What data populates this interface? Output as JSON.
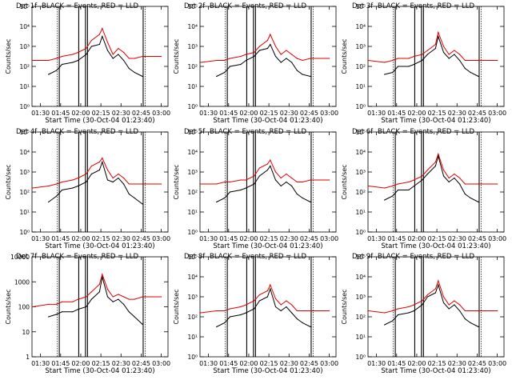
{
  "chart_data": {
    "type": "line",
    "layout": "3x3 grid of panels",
    "time_window": {
      "start": "01:23:40",
      "end": "03:05:00"
    },
    "x_ticks": [
      "01:30",
      "01:45",
      "02:00",
      "02:15",
      "02:30",
      "02:45",
      "03:00"
    ],
    "x_ticks_minutes_after_0100": [
      30,
      45,
      60,
      75,
      90,
      105,
      120
    ],
    "xlabel": "Start Time (30-Oct-04 01:23:40)",
    "ylabel": "Counts/sec",
    "yscale": "log",
    "legend_text": "BLACK = Events, RED = LLD",
    "series_colors": {
      "events": "#000000",
      "lld": "#e00000"
    },
    "vertical_markers_minutes": [
      42.5,
      44.0,
      58.5,
      63.5,
      65.0,
      106.5,
      108.0
    ],
    "series_points_minutes": [
      24,
      36,
      42,
      46,
      54,
      58,
      64,
      68,
      74,
      76,
      80,
      84,
      88,
      92,
      96,
      100,
      106,
      120
    ],
    "panels": [
      {
        "title": "Det 1f",
        "ylim_exp": [
          0,
          5
        ],
        "y_tick_labels": [
          "10⁰",
          "10¹",
          "10²",
          "10³",
          "10⁴",
          "10⁵"
        ],
        "events": [
          null,
          1.6,
          1.8,
          2.1,
          2.2,
          2.3,
          2.6,
          3.0,
          3.1,
          3.5,
          2.8,
          2.4,
          2.6,
          2.3,
          1.9,
          1.7,
          1.5,
          null
        ],
        "lld": [
          2.3,
          2.3,
          2.4,
          2.5,
          2.6,
          2.7,
          2.9,
          3.3,
          3.6,
          3.9,
          3.2,
          2.6,
          2.9,
          2.7,
          2.4,
          2.4,
          2.5,
          2.5
        ]
      },
      {
        "title": "Det 2f",
        "ylim_exp": [
          0,
          5
        ],
        "y_tick_labels": [
          "10⁰",
          "10¹",
          "10²",
          "10³",
          "10⁴",
          "10⁵"
        ],
        "events": [
          null,
          1.5,
          1.7,
          2.0,
          2.1,
          2.3,
          2.5,
          2.8,
          2.9,
          3.1,
          2.5,
          2.2,
          2.4,
          2.2,
          1.8,
          1.6,
          1.5,
          null
        ],
        "lld": [
          2.2,
          2.3,
          2.3,
          2.4,
          2.5,
          2.6,
          2.7,
          3.0,
          3.3,
          3.6,
          3.0,
          2.6,
          2.8,
          2.6,
          2.4,
          2.3,
          2.4,
          2.4
        ]
      },
      {
        "title": "Det 3f",
        "ylim_exp": [
          0,
          5
        ],
        "y_tick_labels": [
          "10⁰",
          "10¹",
          "10²",
          "10³",
          "10⁴",
          "10⁵"
        ],
        "events": [
          null,
          1.6,
          1.7,
          2.0,
          2.0,
          2.1,
          2.3,
          2.6,
          2.9,
          3.5,
          2.7,
          2.4,
          2.6,
          2.3,
          1.9,
          1.7,
          1.5,
          null
        ],
        "lld": [
          2.3,
          2.2,
          2.3,
          2.4,
          2.4,
          2.5,
          2.6,
          2.8,
          3.1,
          3.7,
          3.0,
          2.6,
          2.8,
          2.6,
          2.3,
          2.3,
          2.3,
          2.3
        ]
      },
      {
        "title": "Det 4f",
        "ylim_exp": [
          0,
          5
        ],
        "y_tick_labels": [
          "10⁰",
          "10¹",
          "10²",
          "10³",
          "10⁴",
          "10⁵"
        ],
        "events": [
          null,
          1.5,
          1.8,
          2.1,
          2.2,
          2.3,
          2.5,
          2.9,
          3.1,
          3.5,
          2.6,
          2.5,
          2.7,
          2.4,
          1.9,
          1.7,
          1.4,
          null
        ],
        "lld": [
          2.2,
          2.3,
          2.4,
          2.5,
          2.6,
          2.7,
          2.9,
          3.3,
          3.5,
          3.7,
          3.1,
          2.7,
          2.9,
          2.7,
          2.4,
          2.4,
          2.4,
          2.4
        ]
      },
      {
        "title": "Det 5f",
        "ylim_exp": [
          0,
          5
        ],
        "y_tick_labels": [
          "10⁰",
          "10¹",
          "10²",
          "10³",
          "10⁴",
          "10⁵"
        ],
        "events": [
          null,
          1.5,
          1.7,
          2.0,
          2.1,
          2.2,
          2.4,
          2.8,
          3.1,
          3.3,
          2.6,
          2.3,
          2.5,
          2.3,
          1.9,
          1.7,
          1.5,
          null
        ],
        "lld": [
          2.4,
          2.4,
          2.5,
          2.5,
          2.6,
          2.6,
          2.8,
          3.2,
          3.4,
          3.6,
          3.0,
          2.7,
          2.9,
          2.7,
          2.5,
          2.5,
          2.6,
          2.6
        ]
      },
      {
        "title": "Det 6f",
        "ylim_exp": [
          0,
          5
        ],
        "y_tick_labels": [
          "10⁰",
          "10¹",
          "10²",
          "10³",
          "10⁴",
          "10⁵"
        ],
        "events": [
          null,
          1.6,
          1.8,
          2.1,
          2.1,
          2.3,
          2.6,
          2.9,
          3.3,
          3.8,
          2.8,
          2.5,
          2.7,
          2.4,
          1.9,
          1.7,
          1.5,
          null
        ],
        "lld": [
          2.3,
          2.2,
          2.3,
          2.4,
          2.5,
          2.6,
          2.8,
          3.1,
          3.5,
          3.9,
          3.1,
          2.7,
          2.9,
          2.7,
          2.4,
          2.4,
          2.4,
          2.4
        ]
      },
      {
        "title": "Det 7f",
        "ylim_exp": [
          0,
          4
        ],
        "y_tick_labels": [
          "1",
          "10",
          "100",
          "1000",
          "10000"
        ],
        "events": [
          null,
          1.6,
          1.7,
          1.8,
          1.8,
          1.9,
          2.0,
          2.3,
          2.6,
          3.2,
          2.4,
          2.2,
          2.3,
          2.1,
          1.8,
          1.6,
          1.3,
          null
        ],
        "lld": [
          2.0,
          2.1,
          2.1,
          2.2,
          2.2,
          2.3,
          2.4,
          2.6,
          2.9,
          3.3,
          2.7,
          2.4,
          2.5,
          2.4,
          2.3,
          2.3,
          2.4,
          2.4
        ]
      },
      {
        "title": "Det 8f",
        "ylim_exp": [
          0,
          5
        ],
        "y_tick_labels": [
          "10⁰",
          "10¹",
          "10²",
          "10³",
          "10⁴",
          "10⁵"
        ],
        "events": [
          null,
          1.5,
          1.7,
          2.0,
          2.1,
          2.2,
          2.4,
          2.8,
          3.0,
          3.4,
          2.5,
          2.3,
          2.5,
          2.2,
          1.9,
          1.7,
          1.5,
          null
        ],
        "lld": [
          2.2,
          2.3,
          2.3,
          2.4,
          2.5,
          2.6,
          2.8,
          3.1,
          3.3,
          3.6,
          2.9,
          2.6,
          2.8,
          2.6,
          2.3,
          2.3,
          2.3,
          2.3
        ]
      },
      {
        "title": "Det 9f",
        "ylim_exp": [
          0,
          5
        ],
        "y_tick_labels": [
          "10⁰",
          "10¹",
          "10²",
          "10³",
          "10⁴",
          "10⁵"
        ],
        "events": [
          null,
          1.6,
          1.8,
          2.1,
          2.2,
          2.3,
          2.6,
          3.0,
          3.2,
          3.6,
          2.7,
          2.4,
          2.6,
          2.3,
          1.9,
          1.7,
          1.5,
          null
        ],
        "lld": [
          2.3,
          2.2,
          2.3,
          2.4,
          2.5,
          2.6,
          2.8,
          3.1,
          3.4,
          3.8,
          3.0,
          2.6,
          2.8,
          2.6,
          2.3,
          2.3,
          2.3,
          2.3
        ]
      }
    ]
  }
}
